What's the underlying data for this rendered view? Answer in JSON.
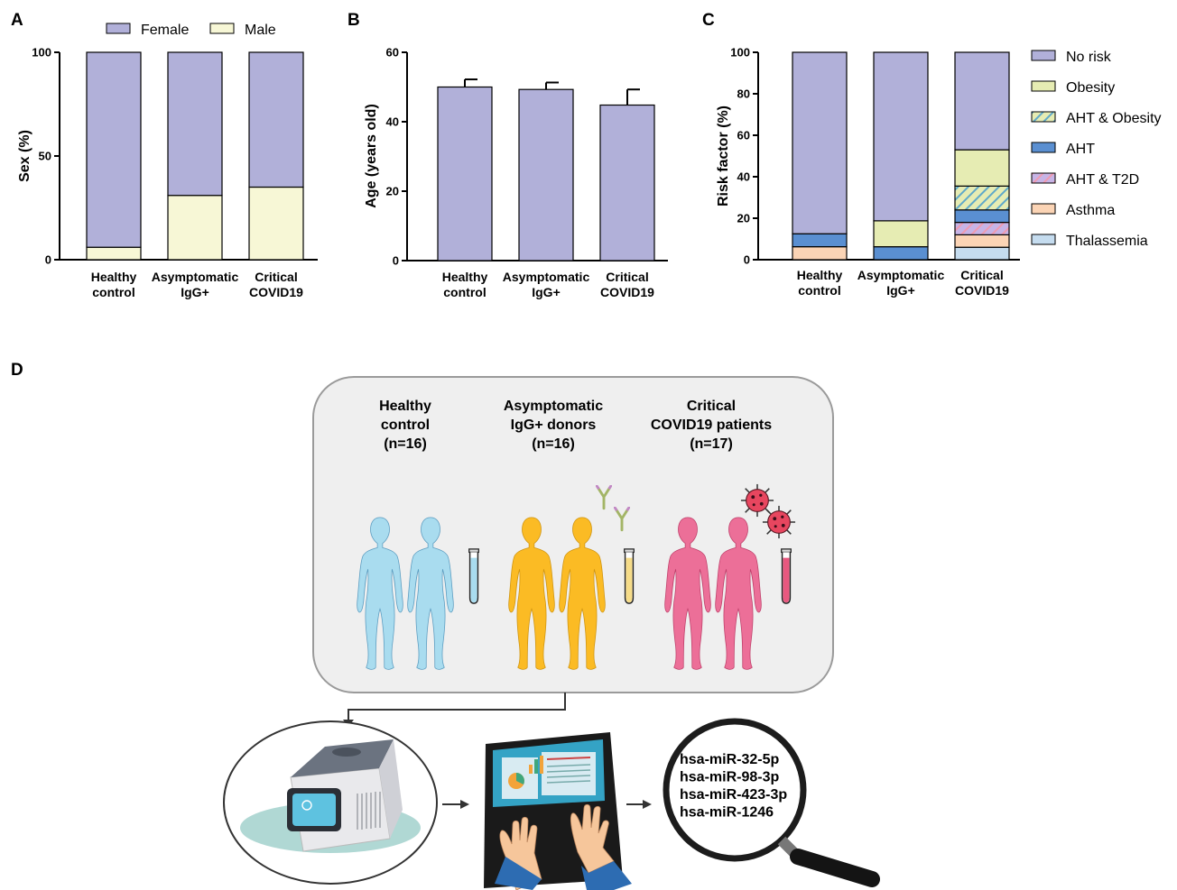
{
  "panels": {
    "a": "A",
    "b": "B",
    "c": "C",
    "d": "D"
  },
  "chart_data": [
    {
      "id": "A",
      "type": "bar",
      "stacked": true,
      "categories": [
        [
          "Healthy",
          "control"
        ],
        [
          "Asymptomatic",
          "IgG+"
        ],
        [
          "Critical",
          "COVID19"
        ]
      ],
      "series": [
        {
          "name": "Male",
          "values": [
            6,
            31,
            35
          ],
          "color": "#f7f7d6"
        },
        {
          "name": "Female",
          "values": [
            94,
            69,
            65
          ],
          "color": "#b1b0d9"
        }
      ],
      "ylabel": "Sex (%)",
      "ylim": [
        0,
        100
      ],
      "yticks": [
        0,
        50,
        100
      ],
      "legend_order": [
        "Female",
        "Male"
      ],
      "legend": "top"
    },
    {
      "id": "B",
      "type": "bar",
      "categories": [
        [
          "Healthy",
          "control"
        ],
        [
          "Asymptomatic",
          "IgG+"
        ],
        [
          "Critical",
          "COVID19"
        ]
      ],
      "values": [
        50,
        49.3,
        44.8
      ],
      "errors": [
        2.2,
        2,
        4.5
      ],
      "color": "#b1b0d9",
      "ylabel": "Age (years old)",
      "ylim": [
        0,
        60
      ],
      "yticks": [
        0,
        20,
        40,
        60
      ]
    },
    {
      "id": "C",
      "type": "bar",
      "stacked": true,
      "categories": [
        [
          "Healthy",
          "control"
        ],
        [
          "Asymptomatic",
          "IgG+"
        ],
        [
          "Critical",
          "COVID19"
        ]
      ],
      "series": [
        {
          "name": "Thalassemia",
          "values": [
            0,
            0,
            6
          ],
          "color": "#c5dcef",
          "pattern": false
        },
        {
          "name": "Asthma",
          "values": [
            6.25,
            0,
            6
          ],
          "color": "#fbd4b5",
          "pattern": false
        },
        {
          "name": "AHT & T2D",
          "values": [
            0,
            0,
            6
          ],
          "color": "#c7b4e6",
          "pattern": "#f09ab0"
        },
        {
          "name": "AHT",
          "values": [
            6.25,
            6.25,
            6
          ],
          "color": "#5a8fd1",
          "pattern": false
        },
        {
          "name": "AHT & Obesity",
          "values": [
            0,
            0,
            11.5
          ],
          "color": "#e6ecb3",
          "pattern": "#5fa9c9"
        },
        {
          "name": "Obesity",
          "values": [
            0,
            12.5,
            17.5
          ],
          "color": "#e6ecb3",
          "pattern": false
        },
        {
          "name": "No risk",
          "values": [
            87.5,
            81.25,
            47
          ],
          "color": "#b1b0d9",
          "pattern": false
        }
      ],
      "legend_order": [
        "No risk",
        "Obesity",
        "AHT & Obesity",
        "AHT",
        "AHT & T2D",
        "Asthma",
        "Thalassemia"
      ],
      "ylabel": "Risk factor (%)",
      "ylim": [
        0,
        100
      ],
      "yticks": [
        0,
        20,
        40,
        60,
        80,
        100
      ],
      "legend": "right"
    }
  ],
  "diagram": {
    "groups": [
      {
        "lines": [
          "Healthy",
          "control",
          "(n=16)"
        ],
        "color": "#a9dcef",
        "tube": "#a9dcef"
      },
      {
        "lines": [
          "Asymptomatic",
          "IgG+ donors",
          "(n=16)"
        ],
        "color": "#fbbb24",
        "tube": "#f6dc88"
      },
      {
        "lines": [
          "Critical",
          "COVID19 patients",
          "(n=17)"
        ],
        "color": "#ec6f98",
        "tube": "#e8587f"
      }
    ],
    "mirnas": [
      "hsa-miR-32-5p",
      "hsa-miR-98-3p",
      "hsa-miR-423-3p",
      "hsa-miR-1246"
    ]
  }
}
